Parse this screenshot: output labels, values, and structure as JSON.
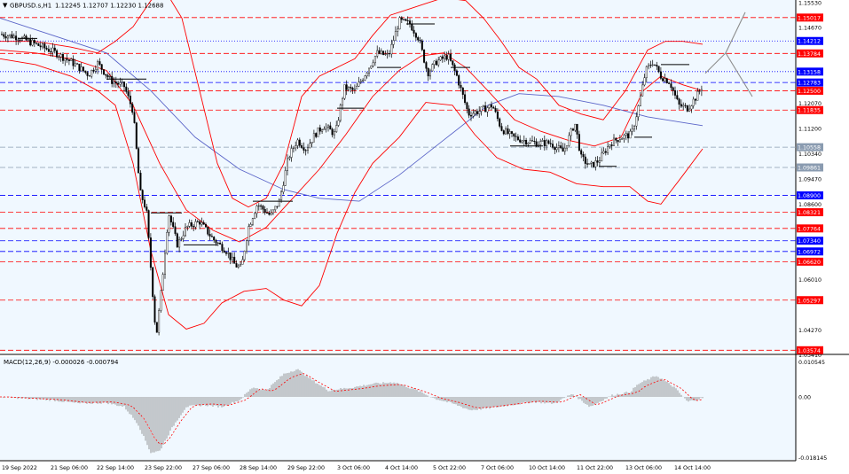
{
  "header": {
    "symbol_label": "GBPUSD.s,H1",
    "ohlc": "1.12245 1.12707 1.12230 1.12688"
  },
  "macd": {
    "label": "MACD(12,26,9) -0.000026 -0.000794",
    "axis_labels": [
      "0.010545",
      "0.00",
      "-0.018145"
    ]
  },
  "price_axis": {
    "labels": [
      "1.15530",
      "1.14670",
      "1.12070",
      "1.11200",
      "1.10340",
      "1.09470",
      "1.08600",
      "1.06010",
      "1.04270",
      "1.03410"
    ]
  },
  "levels": [
    {
      "value": "1.15017",
      "color": "#ff0000",
      "style": "dashed"
    },
    {
      "value": "1.14212",
      "color": "#0000ff",
      "style": "dotted"
    },
    {
      "value": "1.13784",
      "color": "#ff0000",
      "style": "dashed"
    },
    {
      "value": "1.13158",
      "color": "#0000ff",
      "style": "dotted"
    },
    {
      "value": "1.12783",
      "color": "#0000ff",
      "style": "dashed"
    },
    {
      "value": "1.12500",
      "color": "#ff0000",
      "style": "dashed"
    },
    {
      "value": "1.11835",
      "color": "#ff0000",
      "style": "dashed"
    },
    {
      "value": "1.10558",
      "color": "#8a9bb0",
      "style": "dashed"
    },
    {
      "value": "1.09861",
      "color": "#8a9bb0",
      "style": "dashed"
    },
    {
      "value": "1.08900",
      "color": "#0000ff",
      "style": "dashed"
    },
    {
      "value": "1.08321",
      "color": "#ff0000",
      "style": "dashed"
    },
    {
      "value": "1.07764",
      "color": "#ff0000",
      "style": "dashed"
    },
    {
      "value": "1.07340",
      "color": "#0000ff",
      "style": "dashed"
    },
    {
      "value": "1.06972",
      "color": "#0000ff",
      "style": "dashed"
    },
    {
      "value": "1.06620",
      "color": "#ff0000",
      "style": "dashed"
    },
    {
      "value": "1.05297",
      "color": "#ff0000",
      "style": "dashed"
    },
    {
      "value": "1.03574",
      "color": "#ff0000",
      "style": "dashed"
    }
  ],
  "time_axis": [
    "19 Sep 2022",
    "21 Sep 06:00",
    "22 Sep 14:00",
    "23 Sep 22:00",
    "27 Sep 06:00",
    "28 Sep 14:00",
    "29 Sep 22:00",
    "3 Oct 06:00",
    "4 Oct 14:00",
    "5 Oct 22:00",
    "7 Oct 06:00",
    "10 Oct 14:00",
    "11 Oct 22:00",
    "13 Oct 06:00",
    "14 Oct 14:00"
  ],
  "colors": {
    "background": "#f0f8ff",
    "bollinger": "#ff0000",
    "moving_average": "#5a64c8",
    "candles": "#000000",
    "histogram": "#808080",
    "signal": "#ff0000"
  },
  "chart_data": {
    "type": "line",
    "title": "",
    "series": [],
    "approx_close_path": [
      {
        "x": "19 Sep 2022",
        "y": 1.144
      },
      {
        "x": "21 Sep 06:00",
        "y": 1.137
      },
      {
        "x": "22 Sep 14:00",
        "y": 1.127
      },
      {
        "x": "23 Sep 22:00",
        "y": 1.038
      },
      {
        "x": "27 Sep 06:00",
        "y": 1.07
      },
      {
        "x": "28 Sep 14:00",
        "y": 1.08
      },
      {
        "x": "29 Sep 22:00",
        "y": 1.109
      },
      {
        "x": "3 Oct 06:00",
        "y": 1.13
      },
      {
        "x": "4 Oct 14:00",
        "y": 1.148
      },
      {
        "x": "5 Oct 22:00",
        "y": 1.132
      },
      {
        "x": "7 Oct 06:00",
        "y": 1.11
      },
      {
        "x": "10 Oct 14:00",
        "y": 1.106
      },
      {
        "x": "11 Oct 22:00",
        "y": 1.102
      },
      {
        "x": "13 Oct 06:00",
        "y": 1.135
      },
      {
        "x": "14 Oct 14:00",
        "y": 1.1268
      }
    ],
    "ylim": [
      1.034,
      1.1553
    ]
  }
}
